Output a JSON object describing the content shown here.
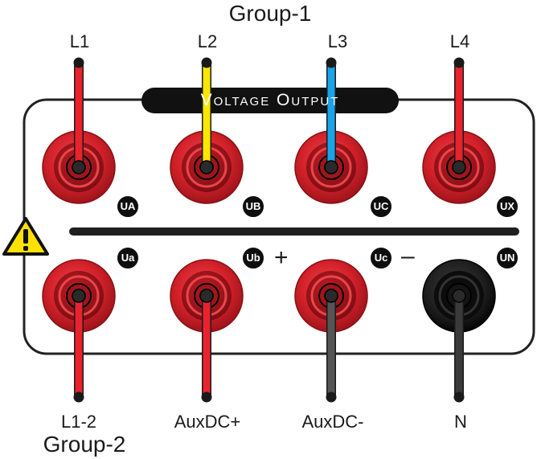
{
  "groups": {
    "top": "Group-1",
    "bottom": "Group-2"
  },
  "panel": {
    "title": "Voltage Output"
  },
  "top_row": [
    {
      "label": "L1",
      "badge": "UA",
      "wire_color": "#e8232e"
    },
    {
      "label": "L2",
      "badge": "UB",
      "wire_color": "#ffe600"
    },
    {
      "label": "L3",
      "badge": "UC",
      "wire_color": "#1aa3e8"
    },
    {
      "label": "L4",
      "badge": "UX",
      "wire_color": "#e8232e"
    }
  ],
  "bottom_row": [
    {
      "label": "L1-2",
      "badge": "Ua",
      "wire_color": "#e8232e",
      "jack": "red"
    },
    {
      "label": "AuxDC+",
      "badge": "Ub",
      "wire_color": "#e8232e",
      "jack": "red",
      "sign": "+"
    },
    {
      "label": "AuxDC-",
      "badge": "Uc",
      "wire_color": "#555555",
      "jack": "red",
      "sign": "–"
    },
    {
      "label": "N",
      "badge": "UN",
      "wire_color": "#3a3a3a",
      "jack": "black"
    }
  ],
  "colors": {
    "jack_red": "#d3212a",
    "jack_black": "#1c1c1c",
    "outline": "#222222",
    "warning": "#ffe200"
  },
  "icons": [
    "warning-icon"
  ]
}
